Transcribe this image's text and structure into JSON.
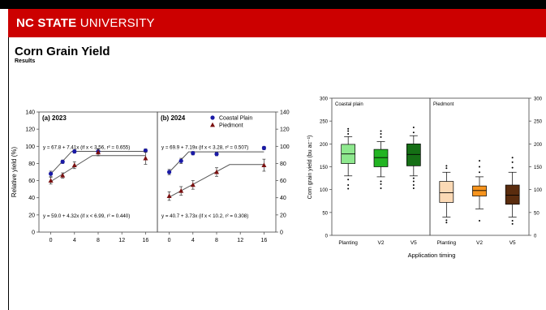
{
  "header": {
    "brand_bold": "NC STATE",
    "brand_rest": " UNIVERSITY",
    "bar_color": "#cc0000"
  },
  "slide": {
    "title": "Corn Grain Yield",
    "subtitle": "Results"
  },
  "chart_data": [
    {
      "type": "scatter",
      "ylabel": "Relative yield (%)",
      "ylim": [
        0,
        140
      ],
      "yticks": [
        0,
        20,
        40,
        60,
        80,
        100,
        120,
        140
      ],
      "xticks": [
        0,
        4,
        8,
        12,
        16
      ],
      "xlim": [
        -2,
        18
      ],
      "panels": [
        {
          "label": "(a) 2023",
          "series": [
            {
              "name": "Coastal Plain",
              "x": [
                0,
                2,
                4,
                8,
                16
              ],
              "y": [
                68,
                82,
                94,
                94,
                95
              ],
              "err": [
                3,
                2,
                2,
                3,
                2
              ]
            },
            {
              "name": "Piedmont",
              "x": [
                0,
                2,
                4,
                8,
                16
              ],
              "y": [
                60,
                66,
                78,
                93,
                86
              ],
              "err": [
                4,
                3,
                4,
                4,
                7
              ]
            }
          ],
          "fits": [
            {
              "series": "Coastal Plain",
              "break": 3.56,
              "a": 67.8,
              "b": 7.41,
              "equation": "y = 67.8 + 7.41x (if x < 3.56, r² = 0.655)"
            },
            {
              "series": "Piedmont",
              "break": 6.99,
              "a": 59.0,
              "b": 4.32,
              "equation": "y = 59.0 + 4.32x (if x < 6.99, r² = 0.440)"
            }
          ]
        },
        {
          "label": "(b) 2024",
          "series": [
            {
              "name": "Coastal Plain",
              "x": [
                0,
                2,
                4,
                8,
                16
              ],
              "y": [
                70,
                83,
                92,
                91,
                98
              ],
              "err": [
                3,
                3,
                2,
                2,
                2
              ]
            },
            {
              "name": "Piedmont",
              "x": [
                0,
                2,
                4,
                8,
                16
              ],
              "y": [
                42,
                48,
                55,
                70,
                78
              ],
              "err": [
                5,
                5,
                5,
                5,
                7
              ]
            }
          ],
          "fits": [
            {
              "series": "Coastal Plain",
              "break": 3.28,
              "a": 69.9,
              "b": 7.19,
              "equation": "y = 69.9 + 7.19x (if x < 3.28, r² = 0.507)"
            },
            {
              "series": "Piedmont",
              "break": 10.2,
              "a": 40.7,
              "b": 3.73,
              "equation": "y = 40.7 + 3.73x (if x < 10.2, r² = 0.308)"
            }
          ]
        }
      ],
      "legend": [
        {
          "name": "Coastal Plain",
          "color": "#1a1aa6",
          "marker": "circle"
        },
        {
          "name": "Piedmont",
          "color": "#7a1010",
          "marker": "triangle"
        }
      ]
    },
    {
      "type": "box",
      "ylabel": "Corn grain yield (bu ac⁻¹)",
      "xlabel": "Application timing",
      "ylim": [
        0,
        300
      ],
      "yticks": [
        0,
        50,
        100,
        150,
        200,
        250,
        300
      ],
      "panels": [
        {
          "label": "Coastal plain",
          "boxes": [
            {
              "category": "Planting",
              "whisker_low": 130,
              "q1": 157,
              "median": 178,
              "q3": 199,
              "whisker_high": 216,
              "outliers": [
                102,
                110,
                122,
                222,
                228,
                233
              ],
              "color": "#8ee88e"
            },
            {
              "category": "V2",
              "whisker_low": 128,
              "q1": 150,
              "median": 170,
              "q3": 188,
              "whisker_high": 205,
              "outliers": [
                103,
                112,
                118,
                215,
                222,
                228
              ],
              "color": "#22b422"
            },
            {
              "category": "V5",
              "whisker_low": 130,
              "q1": 152,
              "median": 177,
              "q3": 200,
              "whisker_high": 218,
              "outliers": [
                103,
                110,
                118,
                125,
                225,
                236
              ],
              "color": "#156f15"
            }
          ]
        },
        {
          "label": "Piedmont",
          "boxes": [
            {
              "category": "Planting",
              "whisker_low": 40,
              "q1": 72,
              "median": 93,
              "q3": 118,
              "whisker_high": 138,
              "outliers": [
                28,
                33,
                147,
                152
              ],
              "color": "#fbd9b5"
            },
            {
              "category": "V2",
              "whisker_low": 58,
              "q1": 86,
              "median": 98,
              "q3": 108,
              "whisker_high": 128,
              "outliers": [
                32,
                138,
                150,
                163
              ],
              "color": "#f7941d"
            },
            {
              "category": "V5",
              "whisker_low": 40,
              "q1": 68,
              "median": 88,
              "q3": 110,
              "whisker_high": 138,
              "outliers": [
                25,
                32,
                148,
                160,
                170
              ],
              "color": "#5a2c0e"
            }
          ]
        }
      ]
    }
  ]
}
